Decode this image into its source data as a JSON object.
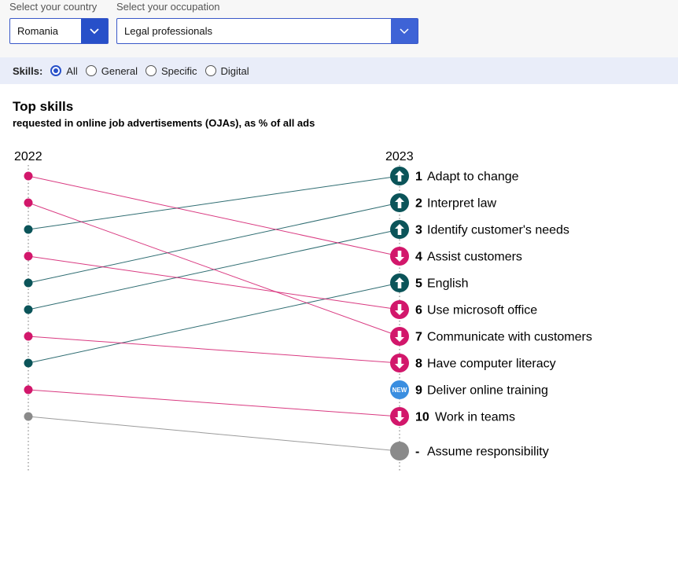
{
  "filters": {
    "country_label": "Select your country",
    "country_value": "Romania",
    "occupation_label": "Select your occupation",
    "occupation_value": "Legal professionals"
  },
  "skills_filter": {
    "label": "Skills:",
    "options": [
      {
        "label": "All",
        "checked": true
      },
      {
        "label": "General",
        "checked": false
      },
      {
        "label": "Specific",
        "checked": false
      },
      {
        "label": "Digital",
        "checked": false
      }
    ]
  },
  "chart_data": {
    "type": "slope",
    "title": "Top skills",
    "subtitle": "requested in online job advertisements (OJAs), as % of all ads",
    "columns": [
      "2022",
      "2023"
    ],
    "colors": {
      "up": "#0b5459",
      "down": "#d2176b",
      "new": "#3a8ee0",
      "dropped": "#8a8a8a"
    },
    "items": [
      {
        "rank_2023": "1",
        "label": "Adapt to change",
        "rank_2022": 3,
        "status": "up"
      },
      {
        "rank_2023": "2",
        "label": "Interpret law",
        "rank_2022": 5,
        "status": "up"
      },
      {
        "rank_2023": "3",
        "label": "Identify customer's needs",
        "rank_2022": 6,
        "status": "up"
      },
      {
        "rank_2023": "4",
        "label": "Assist customers",
        "rank_2022": 1,
        "status": "down"
      },
      {
        "rank_2023": "5",
        "label": "English",
        "rank_2022": 8,
        "status": "up"
      },
      {
        "rank_2023": "6",
        "label": "Use microsoft office",
        "rank_2022": 4,
        "status": "down"
      },
      {
        "rank_2023": "7",
        "label": "Communicate with customers",
        "rank_2022": 2,
        "status": "down"
      },
      {
        "rank_2023": "8",
        "label": "Have computer literacy",
        "rank_2022": 7,
        "status": "down"
      },
      {
        "rank_2023": "9",
        "label": "Deliver online training",
        "rank_2022": null,
        "status": "new",
        "badge": "NEW"
      },
      {
        "rank_2023": "10",
        "label": "Work in teams",
        "rank_2022": 9,
        "status": "down"
      },
      {
        "rank_2023": "-",
        "label": "Assume responsibility",
        "rank_2022": 10,
        "status": "dropped"
      }
    ]
  }
}
